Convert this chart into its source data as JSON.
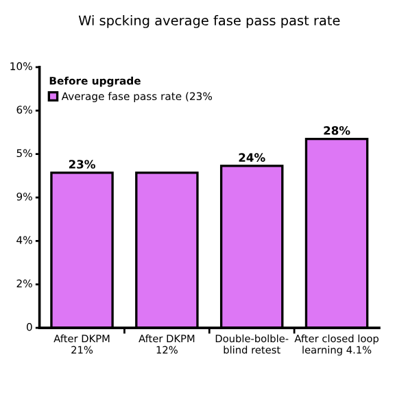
{
  "chart_data": {
    "type": "bar",
    "title": "Wi spcking average fase pass past rate",
    "categories": [
      "After DKPM\n21%",
      "After DKPM\n12%",
      "Double-bolble-\nblind retest",
      "After closed loop\nlearning 4.1%"
    ],
    "series": [
      {
        "name": "Average fase pass rate (23%",
        "color": "#dd77f5",
        "values": [
          23,
          23,
          24,
          28
        ],
        "value_labels": [
          "23%",
          null,
          "24%",
          "28%"
        ]
      }
    ],
    "legend_title": "Before upgrade",
    "legend": "top left",
    "grid": false,
    "annotations": [
      "0",
      "2%",
      "4%",
      "9%",
      "5%",
      "6%",
      "10%"
    ]
  }
}
